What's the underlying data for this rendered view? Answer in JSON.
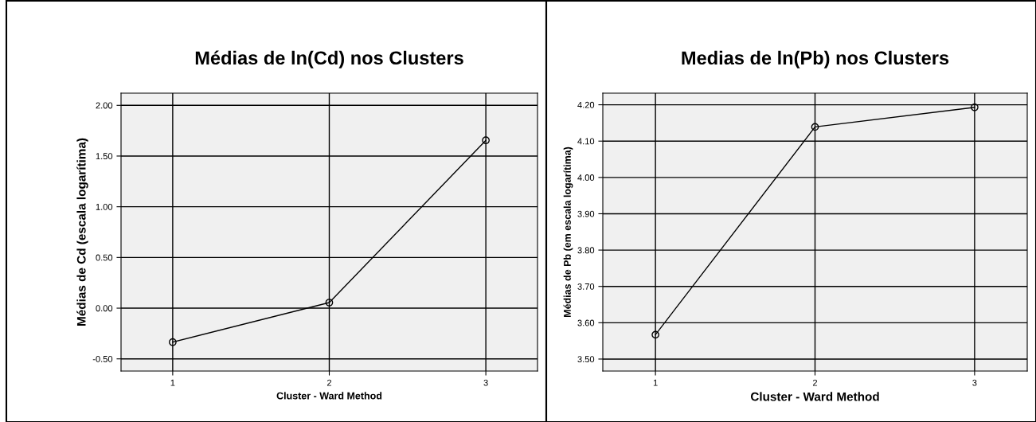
{
  "chart_data": [
    {
      "type": "line",
      "title": "Médias de ln(Cd) nos Clusters",
      "xlabel": "Cluster - Ward Method",
      "ylabel": "Médias de Cd (escala logarítima)",
      "categories": [
        "1",
        "2",
        "3"
      ],
      "series": [
        {
          "color": "#000000",
          "values": [
            -0.335,
            0.055,
            1.655
          ]
        }
      ],
      "ylim": [
        -0.62,
        2.12
      ],
      "yticks": [
        {
          "value": -0.5,
          "label": "-0.50"
        },
        {
          "value": 0,
          "label": "0.00"
        },
        {
          "value": 0.5,
          "label": "0.50"
        },
        {
          "value": 1,
          "label": "1.00"
        },
        {
          "value": 1.5,
          "label": "1.50"
        },
        {
          "value": 2,
          "label": "2.00"
        }
      ],
      "grid": true,
      "marker": "circle",
      "line_style": "solid"
    },
    {
      "type": "line",
      "title": "Medias de ln(Pb) nos Clusters",
      "xlabel": "Cluster - Ward Method",
      "ylabel": "Médias de Pb (em escala logarítima)",
      "categories": [
        "1",
        "2",
        "3"
      ],
      "series": [
        {
          "color": "#000000",
          "values": [
            3.567,
            4.139,
            4.193
          ]
        }
      ],
      "ylim": [
        3.467,
        4.232
      ],
      "yticks": [
        {
          "value": 3.5,
          "label": "3.50"
        },
        {
          "value": 3.6,
          "label": "3.60"
        },
        {
          "value": 3.7,
          "label": "3.70"
        },
        {
          "value": 3.8,
          "label": "3.80"
        },
        {
          "value": 3.9,
          "label": "3.90"
        },
        {
          "value": 4.0,
          "label": "4.00"
        },
        {
          "value": 4.1,
          "label": "4.10"
        },
        {
          "value": 4.2,
          "label": "4.20"
        }
      ],
      "grid": true,
      "marker": "circle",
      "line_style": "solid"
    }
  ]
}
